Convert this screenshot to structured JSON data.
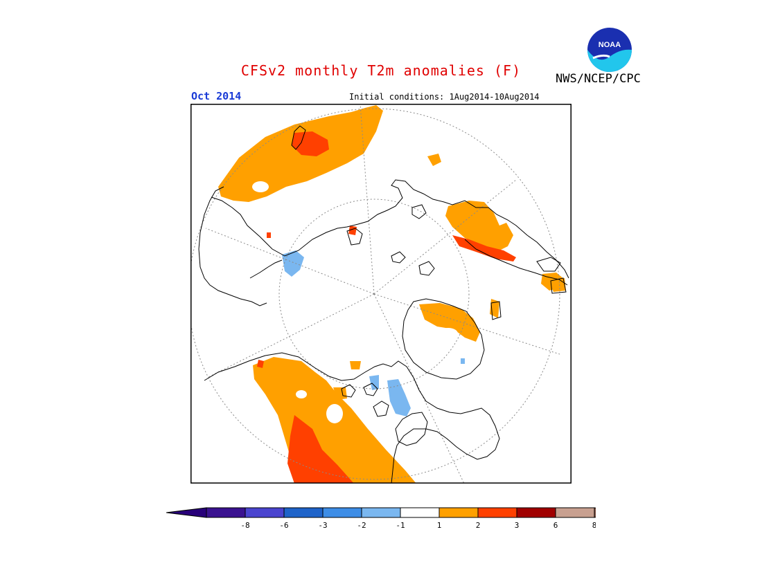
{
  "header": {
    "title": "CFSv2 monthly T2m anomalies (F)",
    "agency": "NWS/NCEP/CPC",
    "logo_text": "NOAA",
    "forecast_month": "Oct 2014",
    "initial_conditions": "Initial conditions: 1Aug2014-10Aug2014"
  },
  "colorbar": {
    "bins": [
      {
        "label": "-8",
        "color": "#3a1290"
      },
      {
        "label": "-6",
        "color": "#4a44cf"
      },
      {
        "label": "-3",
        "color": "#1e63c9"
      },
      {
        "label": "-2",
        "color": "#3d8de6"
      },
      {
        "label": "-1",
        "color": "#7ab7f0"
      },
      {
        "label": "1",
        "color": "#ffffff"
      },
      {
        "label": "2",
        "color": "#ffa000"
      },
      {
        "label": "3",
        "color": "#ff4000"
      },
      {
        "label": "6",
        "color": "#a00000"
      },
      {
        "label": "8",
        "color": "#c8a090"
      }
    ],
    "end_colors": {
      "low": "#28007a",
      "high": "#805040"
    }
  },
  "colors": {
    "warm_small": "#ffa000",
    "warm_large": "#ff4000",
    "cool_small": "#7ab7f0",
    "title": "#e00000",
    "month": "#1a3bd6"
  }
}
